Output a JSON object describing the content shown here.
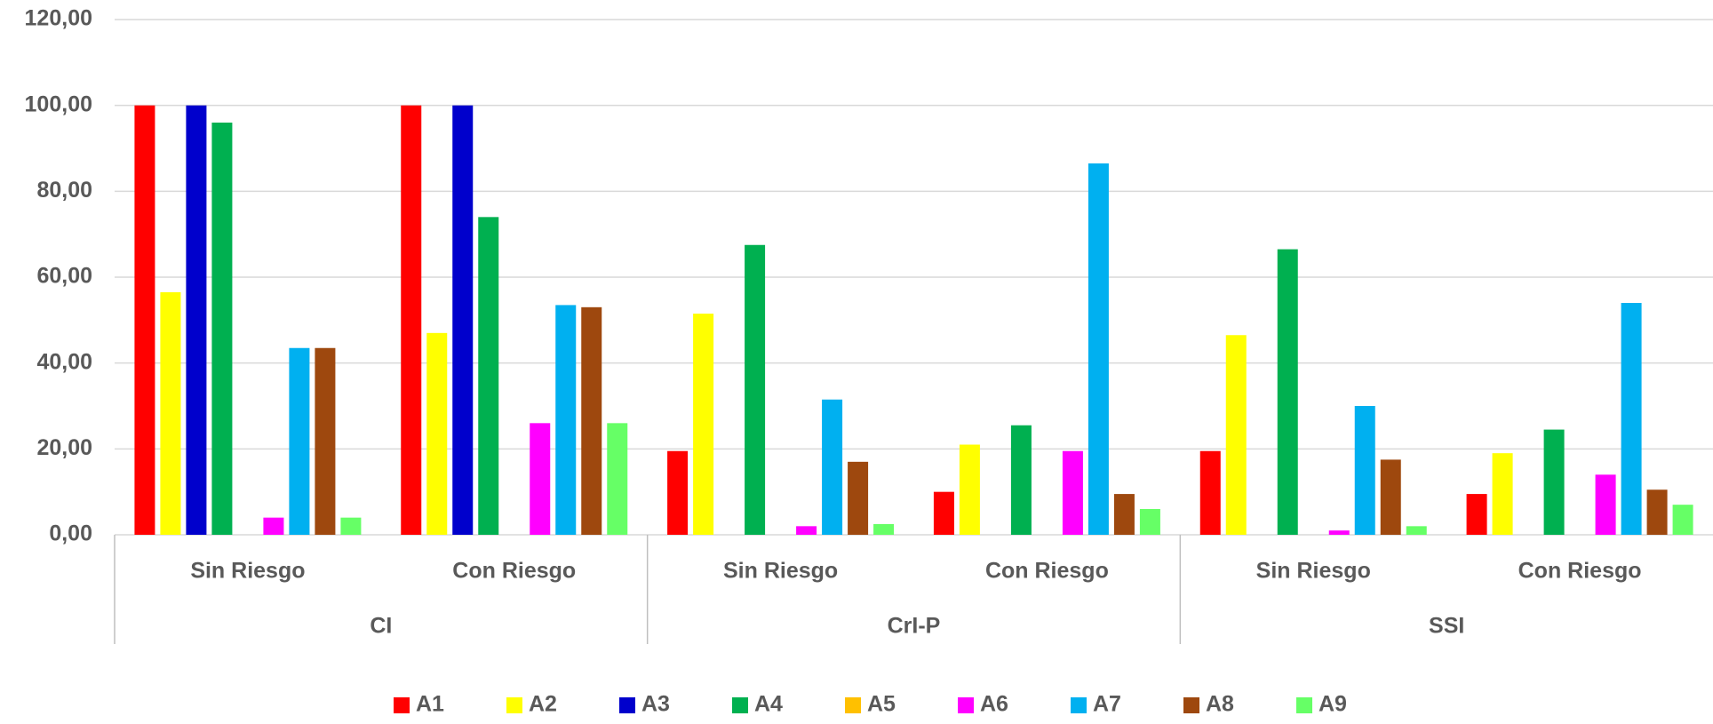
{
  "chart_data": {
    "type": "bar",
    "categories": [
      "Sin Riesgo",
      "Con Riesgo",
      "Sin Riesgo",
      "Con Riesgo",
      "Sin Riesgo",
      "Con Riesgo"
    ],
    "category_groups": [
      "CI",
      "CrI-P",
      "SSI"
    ],
    "series": [
      {
        "name": "A1",
        "color": "#ff0000",
        "values": [
          100,
          100,
          19.5,
          10,
          19.5,
          9.5
        ]
      },
      {
        "name": "A2",
        "color": "#ffff00",
        "values": [
          56.5,
          47,
          51.5,
          21,
          46.5,
          19
        ]
      },
      {
        "name": "A3",
        "color": "#0000cc",
        "values": [
          100,
          100,
          0,
          0,
          0,
          0
        ]
      },
      {
        "name": "A4",
        "color": "#00b050",
        "values": [
          96,
          74,
          67.5,
          25.5,
          66.5,
          24.5
        ]
      },
      {
        "name": "A5",
        "color": "#ffc000",
        "values": [
          0,
          0,
          0,
          0,
          0,
          0
        ]
      },
      {
        "name": "A6",
        "color": "#ff00ff",
        "values": [
          4,
          26,
          2,
          19.5,
          1,
          14
        ]
      },
      {
        "name": "A7",
        "color": "#00b0f0",
        "values": [
          43.5,
          53.5,
          31.5,
          86.5,
          30,
          54
        ]
      },
      {
        "name": "A8",
        "color": "#9e480e",
        "values": [
          43.5,
          53,
          17,
          9.5,
          17.5,
          10.5
        ]
      },
      {
        "name": "A9",
        "color": "#66ff66",
        "values": [
          4,
          26,
          2.5,
          6,
          2,
          7
        ]
      }
    ],
    "ylim": [
      0,
      120
    ],
    "yticks": [
      {
        "value": 0,
        "label": "0,00"
      },
      {
        "value": 20,
        "label": "20,00"
      },
      {
        "value": 40,
        "label": "40,00"
      },
      {
        "value": 60,
        "label": "60,00"
      },
      {
        "value": 80,
        "label": "80,00"
      },
      {
        "value": 100,
        "label": "100,00"
      },
      {
        "value": 120,
        "label": "120,00"
      }
    ],
    "grid": true,
    "legend": "bottom"
  }
}
